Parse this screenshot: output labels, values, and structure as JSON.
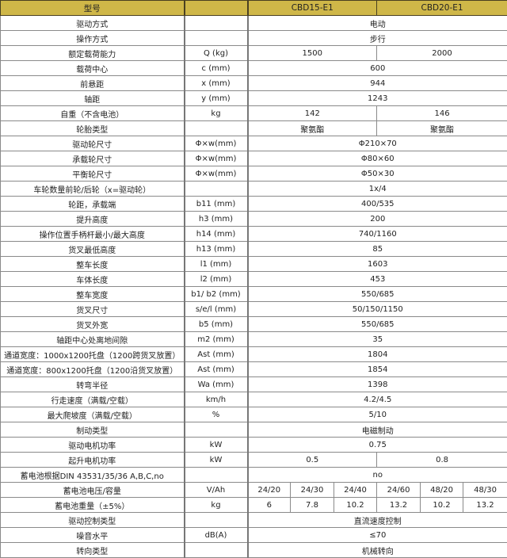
{
  "header": {
    "label": "型号",
    "unit": "",
    "values": [
      "CBD15-E1",
      "CBD20-E1"
    ]
  },
  "colors": {
    "header_bg": "#cfb748",
    "border": "#8a8a8a"
  },
  "rows": [
    {
      "label": "驱动方式",
      "unit": "",
      "values": [
        "电动"
      ]
    },
    {
      "label": "操作方式",
      "unit": "",
      "values": [
        "步行"
      ]
    },
    {
      "label": "额定载荷能力",
      "unit": "Q (kg)",
      "values": [
        "1500",
        "2000"
      ]
    },
    {
      "label": "载荷中心",
      "unit": "c (mm)",
      "values": [
        "600"
      ]
    },
    {
      "label": "前悬距",
      "unit": "x (mm)",
      "values": [
        "944"
      ]
    },
    {
      "label": "轴距",
      "unit": "y (mm)",
      "values": [
        "1243"
      ]
    },
    {
      "label": "自重（不含电池）",
      "unit": "kg",
      "values": [
        "142",
        "146"
      ]
    },
    {
      "label": "轮胎类型",
      "unit": "",
      "values": [
        "聚氨酯",
        "聚氨酯"
      ]
    },
    {
      "label": "驱动轮尺寸",
      "unit": "Φ×w(mm)",
      "values": [
        "Φ210×70"
      ]
    },
    {
      "label": "承载轮尺寸",
      "unit": "Φ×w(mm)",
      "values": [
        "Φ80×60"
      ]
    },
    {
      "label": "平衡轮尺寸",
      "unit": "Φ×w(mm)",
      "values": [
        "Φ50×30"
      ]
    },
    {
      "label": "车轮数量前轮/后轮（x=驱动轮）",
      "unit": "",
      "values": [
        "1x/4"
      ]
    },
    {
      "label": "轮距，承载端",
      "unit": "b11 (mm)",
      "values": [
        "400/535"
      ]
    },
    {
      "label": "提升高度",
      "unit": "h3 (mm)",
      "values": [
        "200"
      ]
    },
    {
      "label": "操作位置手柄杆最小/最大高度",
      "unit": "h14 (mm)",
      "values": [
        "740/1160"
      ]
    },
    {
      "label": "货叉最低高度",
      "unit": "h13 (mm)",
      "values": [
        "85"
      ]
    },
    {
      "label": "整车长度",
      "unit": "l1 (mm)",
      "values": [
        "1603"
      ]
    },
    {
      "label": "车体长度",
      "unit": "l2 (mm)",
      "values": [
        "453"
      ]
    },
    {
      "label": "整车宽度",
      "unit": "b1/ b2 (mm)",
      "values": [
        "550/685"
      ]
    },
    {
      "label": "货叉尺寸",
      "unit": "s/e/l (mm)",
      "values": [
        "50/150/1150"
      ]
    },
    {
      "label": "货叉外宽",
      "unit": "b5 (mm)",
      "values": [
        "550/685"
      ]
    },
    {
      "label": "轴距中心处离地间隙",
      "unit": "m2 (mm)",
      "values": [
        "35"
      ]
    },
    {
      "label": "通道宽度：1000x1200托盘（1200跨货叉放置）",
      "unit": "Ast (mm)",
      "values": [
        "1804"
      ]
    },
    {
      "label": "通道宽度：800x1200托盘（1200沿货叉放置）",
      "unit": "Ast (mm)",
      "values": [
        "1854"
      ]
    },
    {
      "label": "转弯半径",
      "unit": "Wa (mm)",
      "values": [
        "1398"
      ]
    },
    {
      "label": "行走速度（满载/空载）",
      "unit": "km/h",
      "values": [
        "4.2/4.5"
      ]
    },
    {
      "label": "最大爬坡度（满载/空载）",
      "unit": "%",
      "values": [
        "5/10"
      ]
    },
    {
      "label": "制动类型",
      "unit": "",
      "values": [
        "电磁制动"
      ]
    },
    {
      "label": "驱动电机功率",
      "unit": "kW",
      "values": [
        "0.75"
      ]
    },
    {
      "label": "起升电机功率",
      "unit": "kW",
      "values": [
        "0.5",
        "0.8"
      ]
    },
    {
      "label": "蓄电池根据DIN 43531/35/36 A,B,C,no",
      "unit": "",
      "values": [
        "no"
      ]
    },
    {
      "label": "蓄电池电压/容量",
      "unit": "V/Ah",
      "values": [
        "24/20",
        "24/30",
        "24/40",
        "24/60",
        "48/20",
        "48/30"
      ]
    },
    {
      "label": "蓄电池重量（±5%）",
      "unit": "kg",
      "values": [
        "6",
        "7.8",
        "10.2",
        "13.2",
        "10.2",
        "13.2"
      ]
    },
    {
      "label": "驱动控制类型",
      "unit": "",
      "values": [
        "直流速度控制"
      ]
    },
    {
      "label": "噪音水平",
      "unit": "dB(A)",
      "values": [
        "≤70"
      ]
    },
    {
      "label": "转向类型",
      "unit": "",
      "values": [
        "机械转向"
      ]
    }
  ]
}
